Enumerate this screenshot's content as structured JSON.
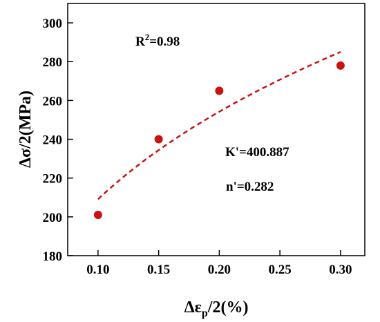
{
  "chart_data": {
    "type": "scatter",
    "xlabel": {
      "main": "Δε",
      "sub": "p",
      "tail": "/2(%)"
    },
    "ylabel": "Δσ/2(MPa)",
    "xlim": [
      0.075,
      0.32
    ],
    "ylim": [
      180,
      310
    ],
    "xticks": [
      0.1,
      0.15,
      0.2,
      0.25,
      0.3
    ],
    "xtick_labels": [
      "0.10",
      "0.15",
      "0.20",
      "0.25",
      "0.30"
    ],
    "yticks": [
      180,
      200,
      220,
      240,
      260,
      280,
      300
    ],
    "ytick_labels": [
      "180",
      "200",
      "220",
      "240",
      "260",
      "280",
      "300"
    ],
    "grid": false,
    "points": [
      {
        "x": 0.1,
        "y": 201
      },
      {
        "x": 0.15,
        "y": 240
      },
      {
        "x": 0.2,
        "y": 265
      },
      {
        "x": 0.3,
        "y": 278
      }
    ],
    "fit": {
      "K": 400.887,
      "n": 0.282,
      "x_range": [
        0.1,
        0.3
      ],
      "style": "dashed"
    },
    "annotations": {
      "r2": {
        "base": "R",
        "sup": "2",
        "rest": "=0.98"
      },
      "k": "K'=400.887",
      "n": "n'=0.282"
    },
    "colors": {
      "marker": "#cc1111",
      "fit": "#cc1111",
      "axis": "#000000"
    }
  }
}
